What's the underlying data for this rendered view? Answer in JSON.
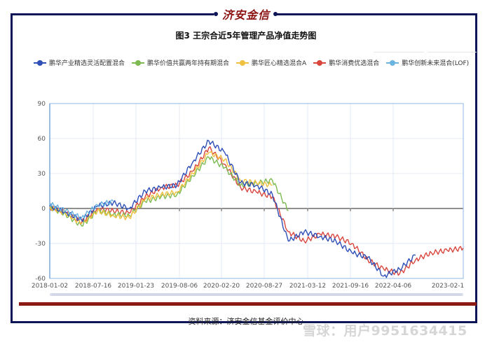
{
  "header": {
    "brand": "济安金信",
    "title": "图3  王宗合近5年管理产品净值走势图"
  },
  "footer": {
    "source": "资料来源：济安金信基金评价中心",
    "watermark": "雪球：用户9951634415"
  },
  "colors": {
    "frame": "#0d1557",
    "brand": "#8b1413",
    "redbar": "#8b1a14",
    "blue": "#2f4fb8",
    "green": "#7dbb52",
    "yellow": "#f0c040",
    "red": "#d9463e",
    "lightblue": "#6bb4e0"
  },
  "legend": [
    {
      "label": "鹏华产业精选灵活配置混合",
      "color": "#2f4fb8"
    },
    {
      "label": "鹏华价值共赢两年持有期混合",
      "color": "#7dbb52"
    },
    {
      "label": "鹏华匠心精选混合A",
      "color": "#f0c040"
    },
    {
      "label": "鹏华消费优选混合",
      "color": "#d9463e"
    },
    {
      "label": "鹏华创新未来混合(LOF)",
      "color": "#6bb4e0"
    }
  ],
  "chart_data": {
    "type": "line",
    "title": "图3  王宗合近5年管理产品净值走势图",
    "xlabel": "",
    "ylabel": "",
    "ylim": [
      -60,
      90
    ],
    "yticks": [
      90,
      60,
      30,
      0,
      -30,
      -60
    ],
    "xticks": [
      "2018-01-02",
      "2018-07-16",
      "2019-01-23",
      "2019-08-06",
      "2020-02-20",
      "2020-08-27",
      "2021-03-12",
      "2021-09-16",
      "2022-04-06",
      "2023-02-1"
    ],
    "grid": true,
    "legend_position": "top",
    "x": [
      "2018-01-02",
      "2018-03",
      "2018-05",
      "2018-07-16",
      "2018-10",
      "2019-01-23",
      "2019-04",
      "2019-06",
      "2019-08-06",
      "2019-10",
      "2019-12",
      "2020-02-20",
      "2020-04",
      "2020-06",
      "2020-08-27",
      "2020-11",
      "2021-01",
      "2021-03-12",
      "2021-06",
      "2021-09-16",
      "2021-12",
      "2022-02",
      "2022-04-06",
      "2022-07",
      "2022-10",
      "2023-01",
      "2023-02-1"
    ],
    "series": [
      {
        "name": "鹏华产业精选灵活配置混合",
        "values": [
          2,
          -3,
          -10,
          2,
          5,
          0,
          15,
          18,
          20,
          40,
          58,
          48,
          22,
          20,
          12,
          -28,
          -20,
          -24,
          -28,
          -38,
          -42,
          -58,
          -52,
          -40,
          null,
          null,
          null
        ]
      },
      {
        "name": "鹏华价值共赢两年持有期混合",
        "values": [
          1,
          -5,
          -15,
          -2,
          -5,
          -6,
          6,
          10,
          12,
          28,
          44,
          35,
          20,
          22,
          24,
          -2,
          null,
          null,
          null,
          null,
          null,
          null,
          null,
          null,
          null,
          null,
          null
        ]
      },
      {
        "name": "鹏华匠心精选混合A",
        "values": [
          1,
          -4,
          -13,
          -2,
          -6,
          -8,
          8,
          12,
          14,
          30,
          48,
          42,
          24,
          22,
          20,
          null,
          null,
          null,
          null,
          null,
          null,
          null,
          null,
          null,
          null,
          null,
          null
        ]
      },
      {
        "name": "鹏华消费优选混合",
        "values": [
          1,
          -3,
          -12,
          0,
          -2,
          -4,
          10,
          18,
          20,
          32,
          52,
          38,
          18,
          14,
          10,
          -20,
          -28,
          -22,
          -24,
          -30,
          -44,
          -52,
          -56,
          -44,
          -38,
          -36,
          -34
        ]
      },
      {
        "name": "鹏华创新未来混合(LOF)",
        "values": [
          4,
          -2,
          -8,
          3,
          6,
          null,
          null,
          null,
          null,
          null,
          null,
          null,
          null,
          null,
          null,
          null,
          null,
          null,
          null,
          null,
          null,
          null,
          null,
          null,
          null,
          null,
          null
        ]
      }
    ]
  }
}
